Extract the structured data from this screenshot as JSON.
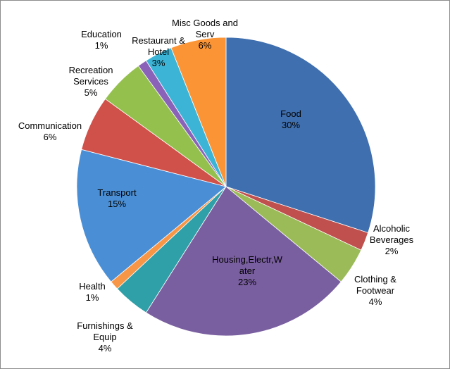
{
  "chart_data": {
    "type": "pie",
    "title": "",
    "legend": "none",
    "slices": [
      {
        "label": [
          "Food"
        ],
        "name": "Food",
        "value": 30,
        "pct": "30%",
        "color": "#3f6fae"
      },
      {
        "label": [
          "Alcoholic",
          "Beverages"
        ],
        "name": "Alcoholic Beverages",
        "value": 2,
        "pct": "2%",
        "color": "#c0504d"
      },
      {
        "label": [
          "Clothing &",
          "Footwear"
        ],
        "name": "Clothing & Footwear",
        "value": 4,
        "pct": "4%",
        "color": "#9bbb59"
      },
      {
        "label": [
          "Housing,Electr,W",
          "ater"
        ],
        "name": "Housing,Electr,Water",
        "value": 23,
        "pct": "23%",
        "color": "#7a5fa0"
      },
      {
        "label": [
          "Furnishings &",
          "Equip"
        ],
        "name": "Furnishings & Equip",
        "value": 4,
        "pct": "4%",
        "color": "#2f9fa8"
      },
      {
        "label": [
          "Health"
        ],
        "name": "Health",
        "value": 1,
        "pct": "1%",
        "color": "#f79646"
      },
      {
        "label": [
          "Transport"
        ],
        "name": "Transport",
        "value": 15,
        "pct": "15%",
        "color": "#4a8fd6"
      },
      {
        "label": [
          "Communication"
        ],
        "name": "Communication",
        "value": 6,
        "pct": "6%",
        "color": "#d0504a"
      },
      {
        "label": [
          "Recreation",
          "Services"
        ],
        "name": "Recreation Services",
        "value": 5,
        "pct": "5%",
        "color": "#94c04e"
      },
      {
        "label": [
          "Education"
        ],
        "name": "Education",
        "value": 1,
        "pct": "1%",
        "color": "#8a63b8"
      },
      {
        "label": [
          "Restaurant &",
          "Hotel"
        ],
        "name": "Restaurant & Hotel",
        "value": 3,
        "pct": "3%",
        "color": "#3cb4d6"
      },
      {
        "label": [
          "Misc Goods and",
          "Serv"
        ],
        "name": "Misc Goods and Serv",
        "value": 6,
        "pct": "6%",
        "color": "#fb9435"
      }
    ]
  }
}
